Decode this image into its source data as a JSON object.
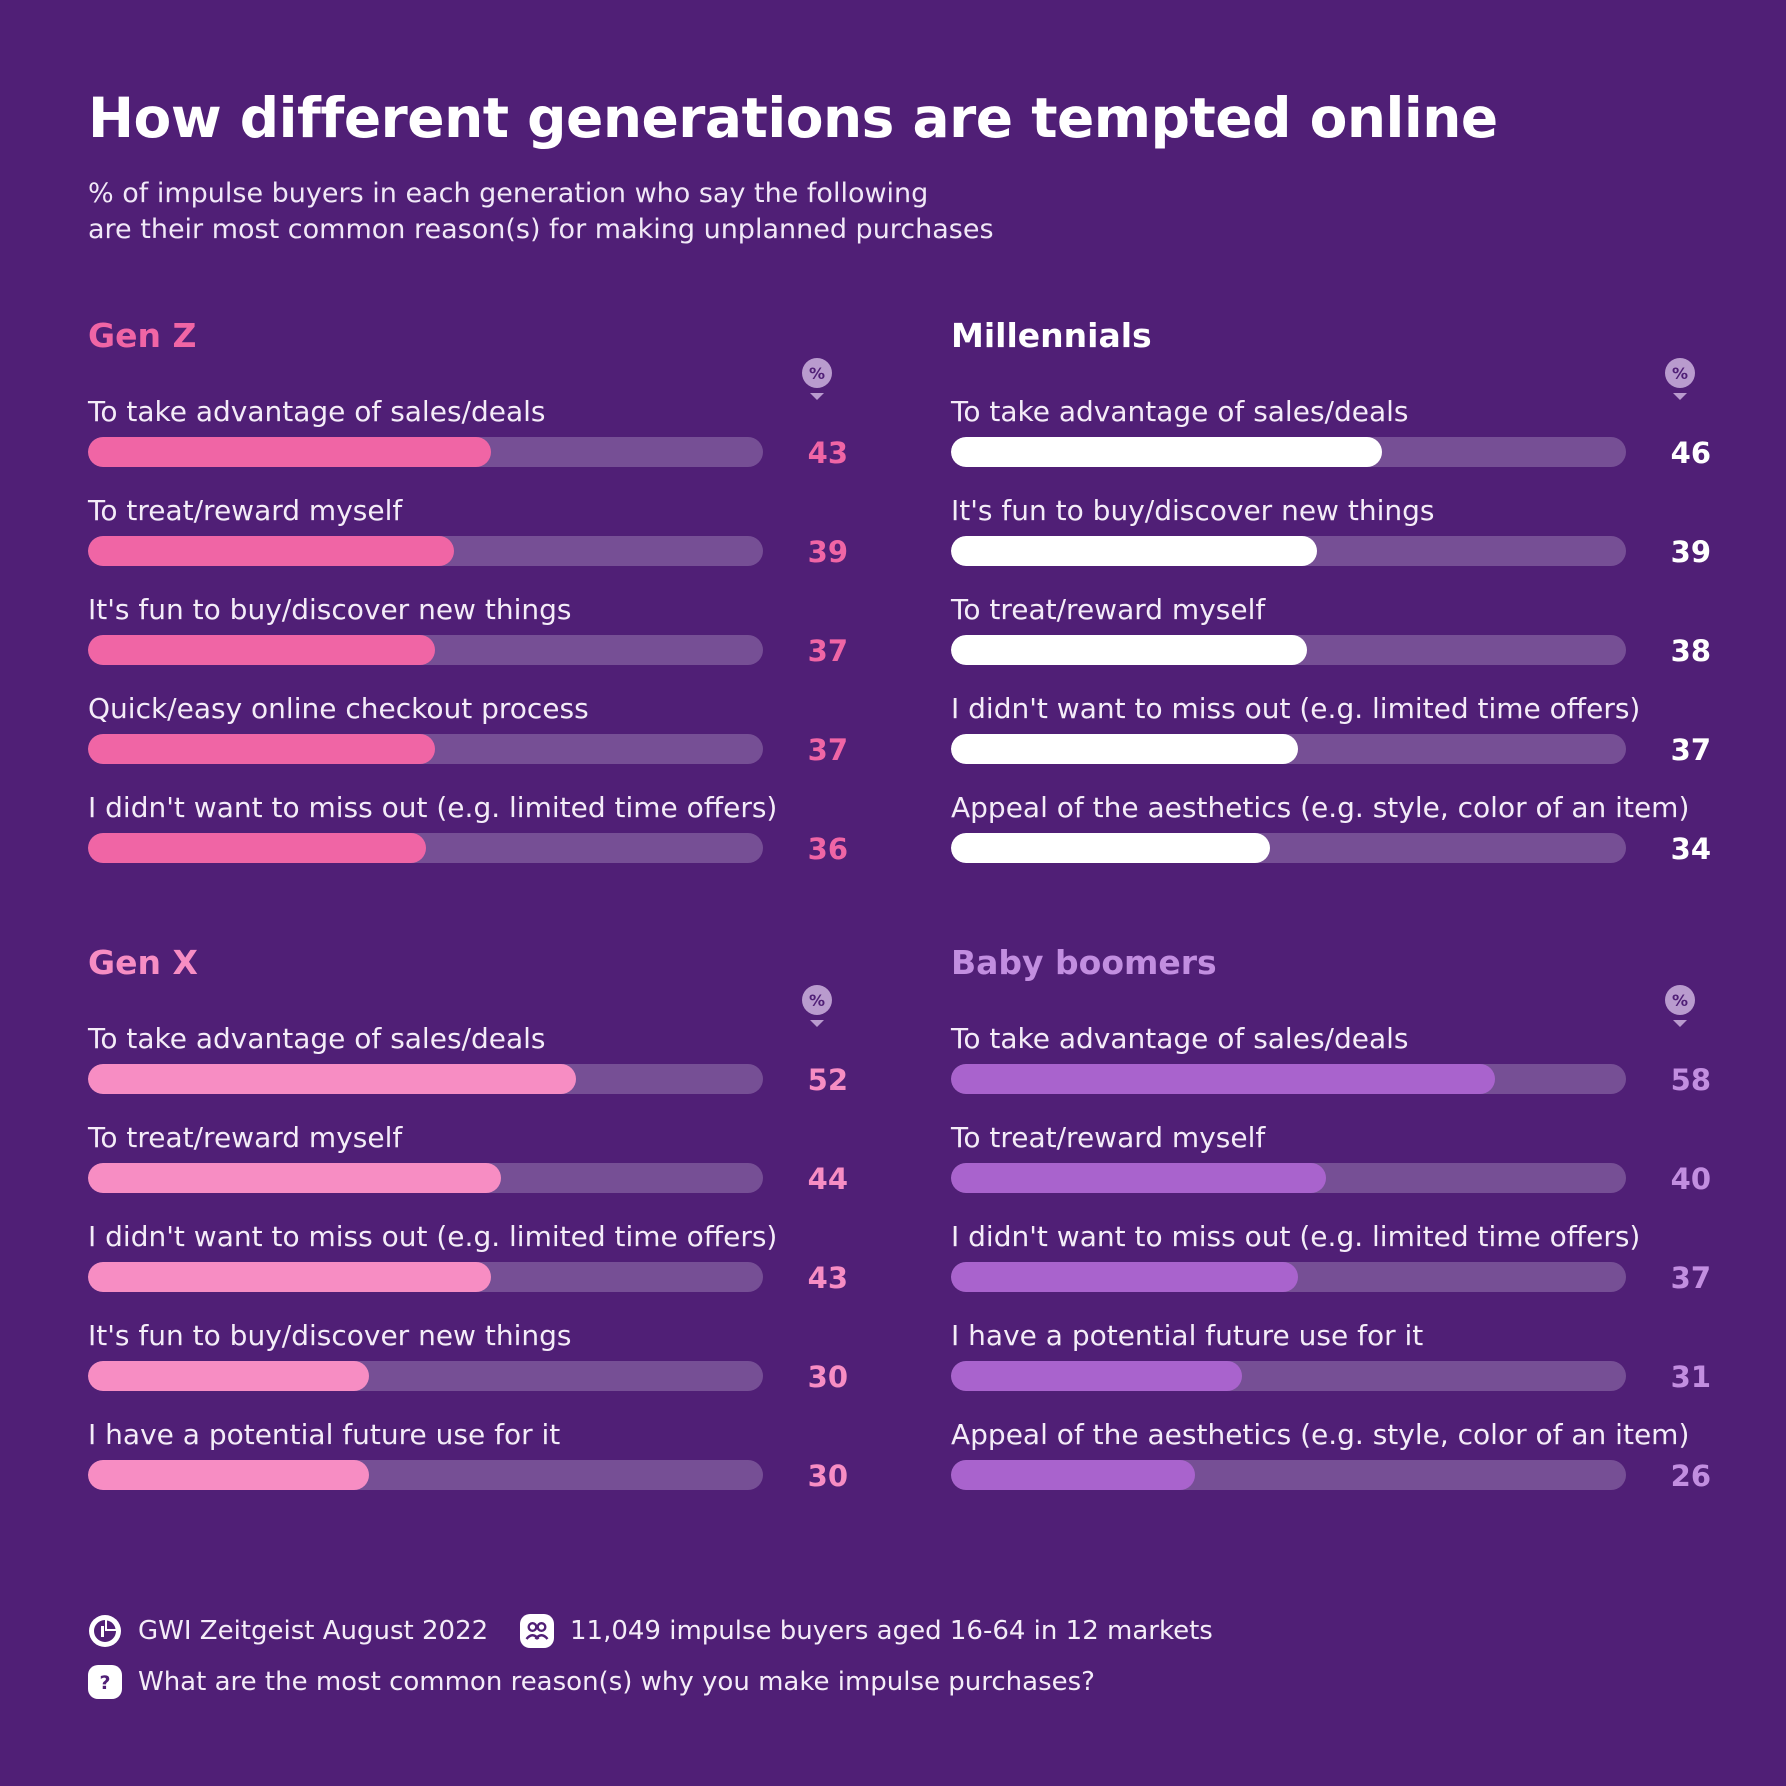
{
  "title": "How different generations are tempted online",
  "subtitle": [
    "% of impulse buyers in each generation who say the following",
    "are their most common reason(s) for making unplanned purchases"
  ],
  "unit_symbol": "%",
  "colors": {
    "background": "#501f76",
    "track": "#764f95",
    "icon": "#b99bce"
  },
  "chart_data": [
    {
      "type": "bar",
      "title": "Gen Z",
      "color": "#f065a5",
      "label_color": "#f065a5",
      "xlim": [
        0,
        72
      ],
      "categories": [
        "To take advantage of sales/deals",
        "To treat/reward myself",
        "It's fun to buy/discover new things",
        "Quick/easy online checkout process",
        "I didn't want to miss out (e.g. limited time offers)"
      ],
      "values": [
        43,
        39,
        37,
        37,
        36
      ]
    },
    {
      "type": "bar",
      "title": "Millennials",
      "color": "#ffffff",
      "label_color": "#ffffff",
      "xlim": [
        0,
        72
      ],
      "categories": [
        "To take advantage of sales/deals",
        "It's fun to buy/discover new things",
        "To treat/reward myself",
        "I didn't want to miss out (e.g. limited time offers)",
        "Appeal of the aesthetics (e.g. style, color of an item)"
      ],
      "values": [
        46,
        39,
        38,
        37,
        34
      ]
    },
    {
      "type": "bar",
      "title": "Gen X",
      "color": "#f78dc3",
      "label_color": "#f78dc3",
      "xlim": [
        0,
        72
      ],
      "categories": [
        "To take advantage of sales/deals",
        "To treat/reward myself",
        "I didn't want to miss out (e.g. limited time offers)",
        "It's fun to buy/discover new things",
        "I have a potential future use for it"
      ],
      "values": [
        52,
        44,
        43,
        30,
        30
      ]
    },
    {
      "type": "bar",
      "title": "Baby boomers",
      "color": "#a963cd",
      "label_color": "#c28ee0",
      "xlim": [
        0,
        72
      ],
      "categories": [
        "To take advantage of sales/deals",
        "To treat/reward myself",
        "I didn't want to miss out (e.g. limited time offers)",
        "I have a potential future use for it",
        "Appeal of the aesthetics (e.g. style, color of an item)"
      ],
      "values": [
        58,
        40,
        37,
        31,
        26
      ]
    }
  ],
  "footer": {
    "source": "GWI Zeitgeist August 2022",
    "sample": "11,049 impulse buyers aged 16-64 in 12 markets",
    "question": "What are the most common reason(s) why you make impulse purchases?"
  }
}
